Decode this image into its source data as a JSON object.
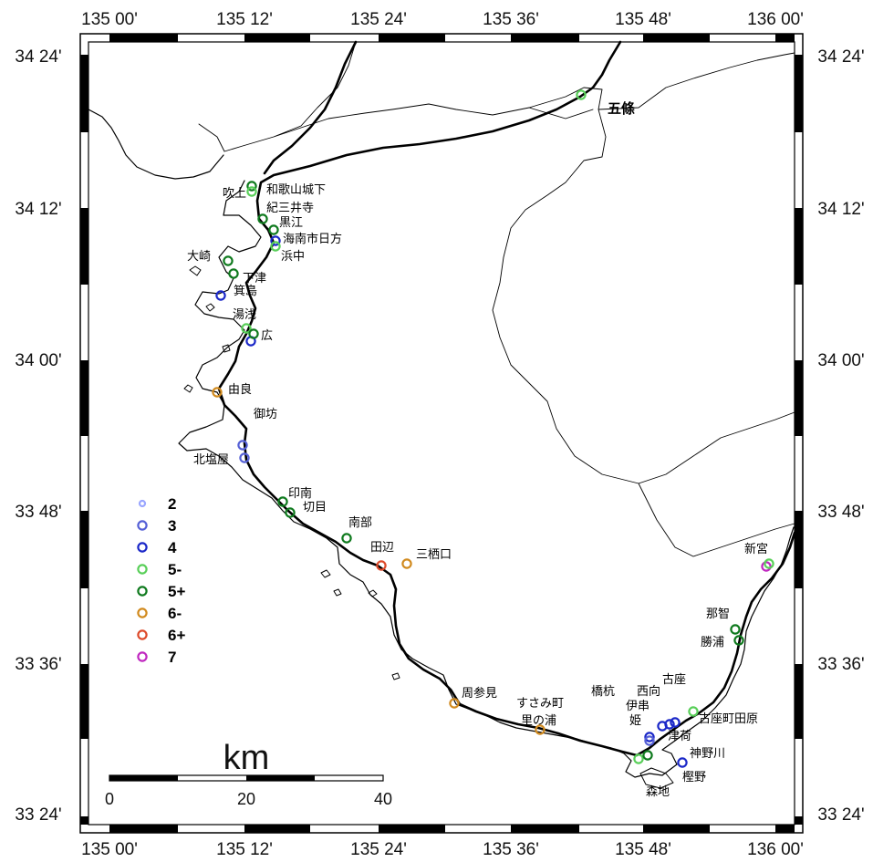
{
  "map": {
    "top_ticks": [
      "135 00'",
      "135 12'",
      "135 24'",
      "135 36'",
      "135 48'",
      "136 00'"
    ],
    "bottom_ticks": [
      "135 00'",
      "135 12'",
      "135 24'",
      "135 36'",
      "135 48'",
      "136 00'"
    ],
    "left_ticks": [
      "34 24'",
      "34 12'",
      "34 00'",
      "33 48'",
      "33 36'",
      "33 24'"
    ],
    "right_ticks": [
      "34 24'",
      "34 12'",
      "34 00'",
      "33 48'",
      "33 36'",
      "33 24'"
    ]
  },
  "legend": {
    "items": [
      {
        "label": "2",
        "color": "#9aa6ff"
      },
      {
        "label": "3",
        "color": "#5560d6"
      },
      {
        "label": "4",
        "color": "#1b28c8"
      },
      {
        "label": "5-",
        "color": "#59cf59"
      },
      {
        "label": "5+",
        "color": "#0f7a1e"
      },
      {
        "label": "6-",
        "color": "#d18a1e"
      },
      {
        "label": "6+",
        "color": "#dd4a2a"
      },
      {
        "label": "7",
        "color": "#c028c0"
      }
    ]
  },
  "scale": {
    "title": "km",
    "labels": [
      "0",
      "20",
      "40"
    ]
  },
  "places": [
    {
      "name": "五條",
      "cls": "big"
    },
    {
      "name": "和歌山城下"
    },
    {
      "name": "吹上"
    },
    {
      "name": "紀三井寺"
    },
    {
      "name": "黒江"
    },
    {
      "name": "海南市日方"
    },
    {
      "name": "浜中"
    },
    {
      "name": "大崎"
    },
    {
      "name": "下津"
    },
    {
      "name": "箕島"
    },
    {
      "name": "湯浅"
    },
    {
      "name": "広"
    },
    {
      "name": "由良"
    },
    {
      "name": "御坊"
    },
    {
      "name": "北塩屋"
    },
    {
      "name": "印南"
    },
    {
      "name": "切目"
    },
    {
      "name": "南部"
    },
    {
      "name": "田辺"
    },
    {
      "name": "三栖口"
    },
    {
      "name": "周参見"
    },
    {
      "name": "すさみ町"
    },
    {
      "name": "里の浦"
    },
    {
      "name": "橋杭"
    },
    {
      "name": "伊串"
    },
    {
      "name": "姫"
    },
    {
      "name": "西向"
    },
    {
      "name": "古座"
    },
    {
      "name": "津荷"
    },
    {
      "name": "古座町田原"
    },
    {
      "name": "神野川"
    },
    {
      "name": "樫野"
    },
    {
      "name": "森地"
    },
    {
      "name": "那智"
    },
    {
      "name": "勝浦"
    },
    {
      "name": "新宮"
    }
  ],
  "points": [
    {
      "i": "5-"
    },
    {
      "i": "5+"
    },
    {
      "i": "5-"
    },
    {
      "i": "4"
    },
    {
      "i": "5+"
    },
    {
      "i": "5-"
    },
    {
      "i": "5+"
    },
    {
      "i": "5+"
    },
    {
      "i": "4"
    },
    {
      "i": "5-"
    },
    {
      "i": "4"
    },
    {
      "i": "5+"
    },
    {
      "i": "6-"
    },
    {
      "i": "3"
    },
    {
      "i": "3"
    },
    {
      "i": "5+"
    },
    {
      "i": "5+"
    },
    {
      "i": "5+"
    },
    {
      "i": "6+"
    },
    {
      "i": "6-"
    },
    {
      "i": "6-"
    },
    {
      "i": "6-"
    },
    {
      "i": "5+"
    },
    {
      "i": "5-"
    },
    {
      "i": "4"
    },
    {
      "i": "4"
    },
    {
      "i": "4"
    },
    {
      "i": "4"
    },
    {
      "i": "4"
    },
    {
      "i": "5+"
    },
    {
      "i": "3"
    },
    {
      "i": "5+"
    },
    {
      "i": "5+"
    },
    {
      "i": "5-"
    },
    {
      "i": "7"
    },
    {
      "i": "5-"
    }
  ]
}
